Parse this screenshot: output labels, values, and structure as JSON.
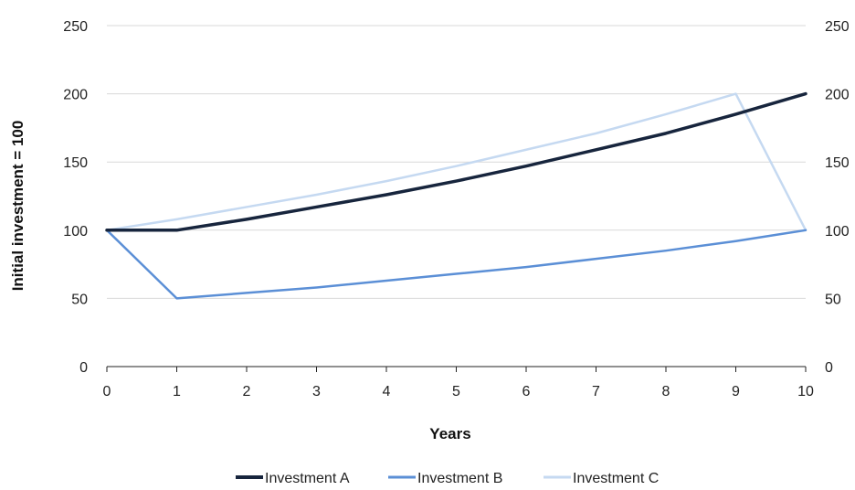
{
  "chart_data": {
    "type": "line",
    "title": "",
    "xlabel": "Years",
    "ylabel": "Initial investment = 100",
    "x": [
      0,
      1,
      2,
      3,
      4,
      5,
      6,
      7,
      8,
      9,
      10
    ],
    "x_ticks": [
      "0",
      "1",
      "2",
      "3",
      "4",
      "5",
      "6",
      "7",
      "8",
      "9",
      "10"
    ],
    "xlim": [
      0,
      10
    ],
    "ylim": [
      0,
      250
    ],
    "y_ticks": [
      "0",
      "50",
      "100",
      "150",
      "200",
      "250"
    ],
    "secondary_y_ticks": [
      "0",
      "50",
      "100",
      "150",
      "200",
      "250"
    ],
    "grid": "horizontal",
    "legend_position": "bottom",
    "series": [
      {
        "name": "Investment A",
        "color": "#17253d",
        "values": [
          100,
          100,
          108,
          117,
          126,
          136,
          147,
          159,
          171,
          185,
          200
        ]
      },
      {
        "name": "Investment B",
        "color": "#5b8fd6",
        "values": [
          100,
          50,
          54,
          58,
          63,
          68,
          73,
          79,
          85,
          92,
          100
        ]
      },
      {
        "name": "Investment C",
        "color": "#c5d9f1",
        "values": [
          100,
          108,
          117,
          126,
          136,
          147,
          159,
          171,
          185,
          200,
          100
        ]
      }
    ]
  }
}
